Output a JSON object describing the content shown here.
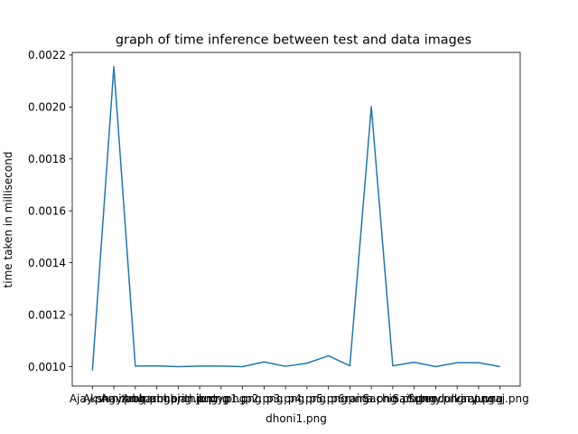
{
  "chart_data": {
    "type": "line",
    "title": "graph of time inference between test and data images",
    "xlabel": "dhoni1.png",
    "ylabel": "time taken in millisecond",
    "ylim": [
      0.000925,
      0.00221
    ],
    "grid": false,
    "yticks": [
      0.001,
      0.0012,
      0.0014,
      0.0016,
      0.0018,
      0.002,
      0.0022
    ],
    "ytick_labels": [
      "0.0010",
      "0.0012",
      "0.0014",
      "0.0016",
      "0.0018",
      "0.0020",
      "0.0022"
    ],
    "categories": [
      "Ajay.png",
      "Akshay.png",
      "Amitabh.png",
      "Anupam.png",
      "harbhajan.png",
      "hrithik.png",
      "jonty.png",
      "p1.png",
      "p2.png",
      "p3.png",
      "p4.png",
      "p5.png",
      "p6.png",
      "raina.png",
      "Sachin.png",
      "Saif.png",
      "Sunny.png",
      "tendulkar.png",
      "virat.png",
      "yuvraj.png"
    ],
    "series": [
      {
        "color": "#1f77b4",
        "values": [
          0.000985,
          0.002155,
          0.001002,
          0.001003,
          0.001,
          0.001002,
          0.001002,
          0.001,
          0.001018,
          0.001001,
          0.001013,
          0.001042,
          0.001003,
          0.002001,
          0.001003,
          0.001017,
          0.001,
          0.001015,
          0.001015,
          0.001
        ]
      }
    ]
  }
}
